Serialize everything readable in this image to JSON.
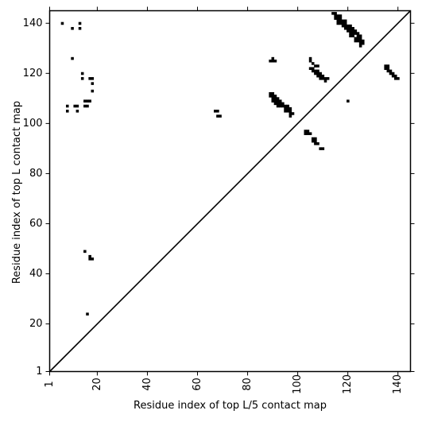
{
  "chart_data": {
    "type": "scatter",
    "title": "",
    "xlabel": "Residue index of top L/5 contact map",
    "ylabel": "Residue index of top L contact map",
    "xlim": [
      1,
      145
    ],
    "ylim": [
      1,
      145
    ],
    "xticks": [
      1,
      20,
      40,
      60,
      80,
      100,
      120,
      140
    ],
    "yticks": [
      1,
      20,
      40,
      60,
      80,
      100,
      120,
      140
    ],
    "marker": "square",
    "color": "#000000",
    "diagonal": true,
    "grid": false,
    "points": [
      [
        6,
        140
      ],
      [
        10,
        138
      ],
      [
        13,
        140
      ],
      [
        13,
        138
      ],
      [
        10,
        126
      ],
      [
        14,
        120
      ],
      [
        14,
        118
      ],
      [
        17,
        118
      ],
      [
        18,
        118
      ],
      [
        18,
        116
      ],
      [
        18,
        113
      ],
      [
        15,
        109
      ],
      [
        16,
        109
      ],
      [
        17,
        109
      ],
      [
        15,
        107
      ],
      [
        16,
        107
      ],
      [
        8,
        107
      ],
      [
        11,
        107
      ],
      [
        12,
        107
      ],
      [
        8,
        105
      ],
      [
        12,
        105
      ],
      [
        15,
        49
      ],
      [
        17,
        47
      ],
      [
        17,
        46
      ],
      [
        18,
        46
      ],
      [
        16,
        24
      ],
      [
        67,
        105
      ],
      [
        68,
        105
      ],
      [
        68,
        103
      ],
      [
        69,
        103
      ],
      [
        89,
        125
      ],
      [
        90,
        126
      ],
      [
        90,
        125
      ],
      [
        91,
        125
      ],
      [
        89,
        112
      ],
      [
        90,
        112
      ],
      [
        89,
        111
      ],
      [
        90,
        111
      ],
      [
        91,
        111
      ],
      [
        90,
        110
      ],
      [
        91,
        110
      ],
      [
        92,
        110
      ],
      [
        90,
        109
      ],
      [
        91,
        109
      ],
      [
        92,
        109
      ],
      [
        93,
        109
      ],
      [
        91,
        108
      ],
      [
        92,
        108
      ],
      [
        93,
        108
      ],
      [
        94,
        108
      ],
      [
        92,
        107
      ],
      [
        93,
        107
      ],
      [
        94,
        107
      ],
      [
        95,
        107
      ],
      [
        96,
        107
      ],
      [
        95,
        106
      ],
      [
        96,
        106
      ],
      [
        97,
        106
      ],
      [
        95,
        105
      ],
      [
        96,
        105
      ],
      [
        97,
        105
      ],
      [
        97,
        104
      ],
      [
        98,
        104
      ],
      [
        97,
        103
      ],
      [
        103,
        97
      ],
      [
        104,
        97
      ],
      [
        103,
        96
      ],
      [
        104,
        96
      ],
      [
        105,
        96
      ],
      [
        106,
        94
      ],
      [
        107,
        94
      ],
      [
        106,
        93
      ],
      [
        107,
        93
      ],
      [
        107,
        92
      ],
      [
        108,
        92
      ],
      [
        109,
        90
      ],
      [
        110,
        90
      ],
      [
        105,
        126
      ],
      [
        105,
        125
      ],
      [
        106,
        124
      ],
      [
        105,
        122
      ],
      [
        106,
        122
      ],
      [
        107,
        123
      ],
      [
        108,
        123
      ],
      [
        106,
        121
      ],
      [
        107,
        121
      ],
      [
        108,
        121
      ],
      [
        107,
        120
      ],
      [
        108,
        120
      ],
      [
        109,
        120
      ],
      [
        108,
        119
      ],
      [
        109,
        119
      ],
      [
        110,
        119
      ],
      [
        109,
        118
      ],
      [
        110,
        118
      ],
      [
        111,
        118
      ],
      [
        111,
        117
      ],
      [
        112,
        118
      ],
      [
        120,
        109
      ],
      [
        114,
        144
      ],
      [
        115,
        144
      ],
      [
        115,
        143
      ],
      [
        116,
        143
      ],
      [
        117,
        143
      ],
      [
        115,
        142
      ],
      [
        116,
        142
      ],
      [
        117,
        142
      ],
      [
        116,
        141
      ],
      [
        117,
        141
      ],
      [
        118,
        141
      ],
      [
        119,
        141
      ],
      [
        116,
        140
      ],
      [
        117,
        140
      ],
      [
        118,
        140
      ],
      [
        119,
        140
      ],
      [
        118,
        139
      ],
      [
        119,
        139
      ],
      [
        120,
        139
      ],
      [
        121,
        139
      ],
      [
        119,
        138
      ],
      [
        120,
        138
      ],
      [
        121,
        138
      ],
      [
        122,
        138
      ],
      [
        120,
        137
      ],
      [
        121,
        137
      ],
      [
        122,
        137
      ],
      [
        123,
        137
      ],
      [
        121,
        136
      ],
      [
        122,
        136
      ],
      [
        123,
        136
      ],
      [
        124,
        136
      ],
      [
        121,
        135
      ],
      [
        122,
        135
      ],
      [
        124,
        135
      ],
      [
        125,
        135
      ],
      [
        123,
        134
      ],
      [
        124,
        134
      ],
      [
        125,
        134
      ],
      [
        123,
        133
      ],
      [
        124,
        133
      ],
      [
        125,
        133
      ],
      [
        126,
        133
      ],
      [
        125,
        132
      ],
      [
        126,
        132
      ],
      [
        125,
        131
      ],
      [
        135,
        123
      ],
      [
        136,
        123
      ],
      [
        135,
        122
      ],
      [
        136,
        122
      ],
      [
        136,
        121
      ],
      [
        137,
        121
      ],
      [
        137,
        120
      ],
      [
        138,
        120
      ],
      [
        138,
        119
      ],
      [
        139,
        119
      ],
      [
        139,
        118
      ],
      [
        140,
        118
      ]
    ]
  }
}
